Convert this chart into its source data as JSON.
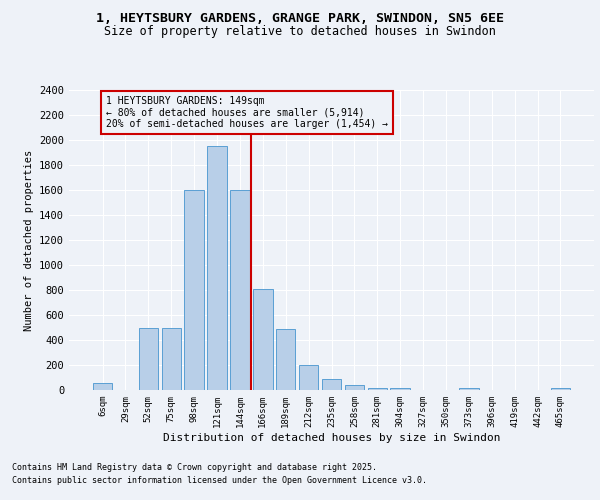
{
  "title_line1": "1, HEYTSBURY GARDENS, GRANGE PARK, SWINDON, SN5 6EE",
  "title_line2": "Size of property relative to detached houses in Swindon",
  "xlabel": "Distribution of detached houses by size in Swindon",
  "ylabel": "Number of detached properties",
  "footer_line1": "Contains HM Land Registry data © Crown copyright and database right 2025.",
  "footer_line2": "Contains public sector information licensed under the Open Government Licence v3.0.",
  "categories": [
    "6sqm",
    "29sqm",
    "52sqm",
    "75sqm",
    "98sqm",
    "121sqm",
    "144sqm",
    "166sqm",
    "189sqm",
    "212sqm",
    "235sqm",
    "258sqm",
    "281sqm",
    "304sqm",
    "327sqm",
    "350sqm",
    "373sqm",
    "396sqm",
    "419sqm",
    "442sqm",
    "465sqm"
  ],
  "values": [
    55,
    0,
    500,
    500,
    1600,
    1950,
    1600,
    810,
    490,
    200,
    85,
    40,
    20,
    20,
    0,
    0,
    20,
    0,
    0,
    0,
    20
  ],
  "bar_color": "#b8cfe8",
  "bar_edge_color": "#5a9fd4",
  "vline_position": 6.5,
  "vline_color": "#cc0000",
  "annotation_text": "1 HEYTSBURY GARDENS: 149sqm\n← 80% of detached houses are smaller (5,914)\n20% of semi-detached houses are larger (1,454) →",
  "annotation_box_color": "#cc0000",
  "ylim": [
    0,
    2400
  ],
  "yticks": [
    0,
    200,
    400,
    600,
    800,
    1000,
    1200,
    1400,
    1600,
    1800,
    2000,
    2200,
    2400
  ],
  "bg_color": "#eef2f8",
  "grid_color": "#ffffff",
  "title_fontsize": 9.5,
  "subtitle_fontsize": 8.5,
  "ylabel_text": "Number of detached properties"
}
